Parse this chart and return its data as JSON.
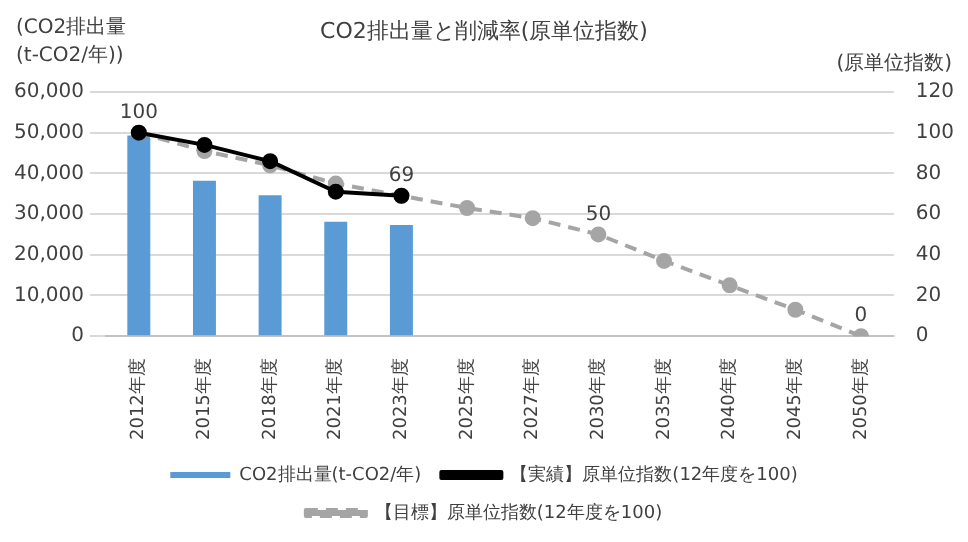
{
  "chart_data": {
    "type": "bar",
    "title": "CO2排出量と削減率(原単位指数)",
    "ylabel": "(CO2排出量 (t-CO2/年))",
    "y2label": "(原単位指数)",
    "categories": [
      "2012年度",
      "2015年度",
      "2018年度",
      "2021年度",
      "2023年度",
      "2025年度",
      "2027年度",
      "2030年度",
      "2035年度",
      "2040年度",
      "2045年度",
      "2050年度"
    ],
    "series": [
      {
        "name": "CO2排出量(t-CO2/年)",
        "color": "#5b9bd5",
        "values": [
          49300,
          38200,
          34600,
          28100,
          27300,
          null,
          null,
          null,
          null,
          null,
          null,
          null
        ]
      },
      {
        "name": "【実績】原単位指数(12年度を100)",
        "type": "line",
        "axis": "y2",
        "color": "#000000",
        "marker": "circle",
        "line_style": "solid",
        "values": [
          100,
          94,
          86,
          71,
          69,
          null,
          null,
          null,
          null,
          null,
          null,
          null
        ]
      },
      {
        "name": "【目標】原単位指数(12年度を100)",
        "type": "line",
        "axis": "y2",
        "color": "#a5a5a5",
        "marker": "circle",
        "line_style": "dashed",
        "values": [
          100,
          91,
          84,
          75,
          69,
          63,
          58,
          50,
          37,
          25,
          13,
          0
        ],
        "value_labels": [
          "100",
          null,
          null,
          null,
          "69",
          null,
          null,
          "50",
          null,
          null,
          null,
          "0"
        ]
      }
    ],
    "ylim": [
      0,
      60000
    ],
    "yticks": [
      0,
      {
        "value": 10000,
        "label": "10,000"
      },
      {
        "value": 20000,
        "label": "20,000"
      },
      {
        "value": 30000,
        "label": "30,000"
      },
      {
        "value": 40000,
        "label": "40,000"
      },
      {
        "value": 50000,
        "label": "50,000"
      },
      {
        "value": 60000,
        "label": "60,000"
      }
    ],
    "y2lim": [
      0,
      120
    ],
    "y2ticks": [
      0,
      20,
      40,
      60,
      80,
      100,
      120
    ],
    "grid": "y",
    "legend": "bottom"
  }
}
